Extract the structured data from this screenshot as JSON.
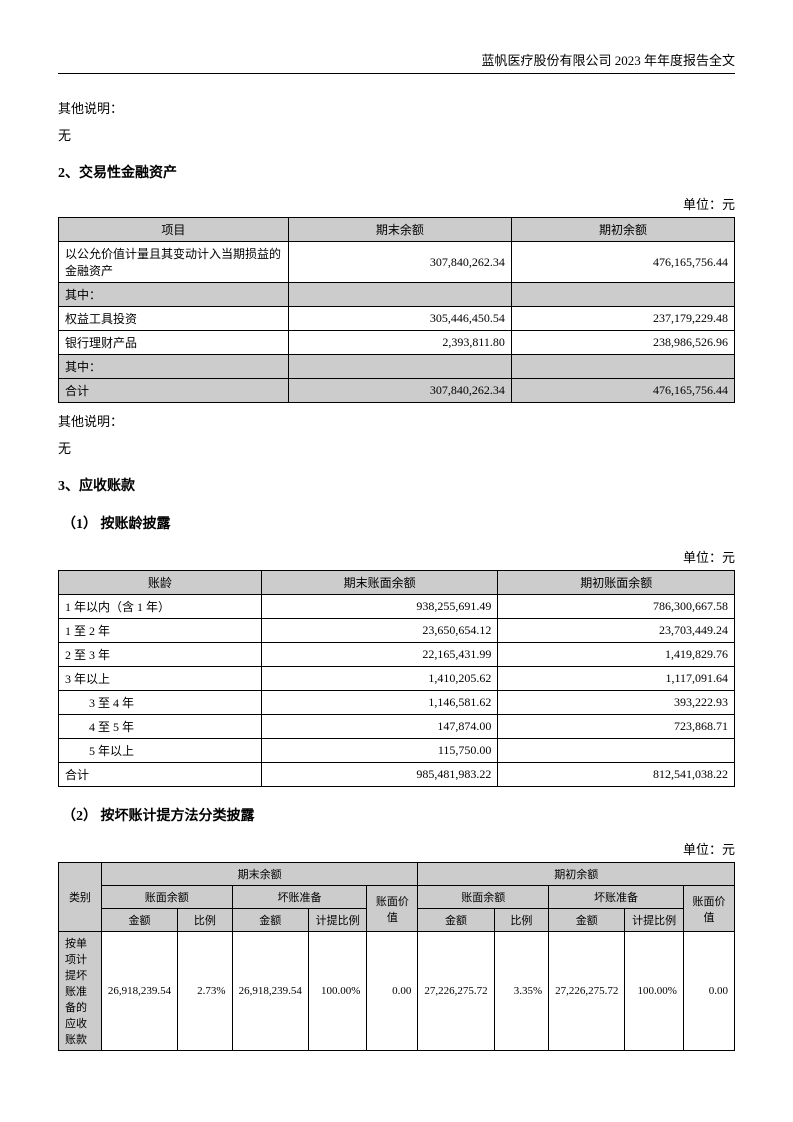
{
  "header": {
    "title": "蓝帆医疗股份有限公司 2023 年年度报告全文"
  },
  "texts": {
    "other_note_label": "其他说明：",
    "none": "无",
    "unit": "单位：元"
  },
  "section2": {
    "heading": "2、交易性金融资产",
    "columns": [
      "项目",
      "期末余额",
      "期初余额"
    ],
    "rows": [
      {
        "label": "以公允价值计量且其变动计入当期损益的金融资产",
        "end": "307,840,262.34",
        "begin": "476,165,756.44",
        "shaded": false
      },
      {
        "label": "其中：",
        "end": "",
        "begin": "",
        "shaded": true
      },
      {
        "label": "权益工具投资",
        "end": "305,446,450.54",
        "begin": "237,179,229.48",
        "shaded": false
      },
      {
        "label": "银行理财产品",
        "end": "2,393,811.80",
        "begin": "238,986,526.96",
        "shaded": false
      },
      {
        "label": "其中：",
        "end": "",
        "begin": "",
        "shaded": true
      },
      {
        "label": "合计",
        "end": "307,840,262.34",
        "begin": "476,165,756.44",
        "shaded": true
      }
    ]
  },
  "section3": {
    "heading": "3、应收账款",
    "sub1": "（1） 按账龄披露",
    "sub2": "（2） 按坏账计提方法分类披露",
    "table1": {
      "columns": [
        "账龄",
        "期末账面余额",
        "期初账面余额"
      ],
      "rows": [
        {
          "label": "1 年以内（含 1 年）",
          "end": "938,255,691.49",
          "begin": "786,300,667.58",
          "indent": 0
        },
        {
          "label": "1 至 2 年",
          "end": "23,650,654.12",
          "begin": "23,703,449.24",
          "indent": 0
        },
        {
          "label": "2 至 3 年",
          "end": "22,165,431.99",
          "begin": "1,419,829.76",
          "indent": 0
        },
        {
          "label": "3 年以上",
          "end": "1,410,205.62",
          "begin": "1,117,091.64",
          "indent": 0
        },
        {
          "label": "3 至 4 年",
          "end": "1,146,581.62",
          "begin": "393,222.93",
          "indent": 1
        },
        {
          "label": "4 至 5 年",
          "end": "147,874.00",
          "begin": "723,868.71",
          "indent": 1
        },
        {
          "label": "5 年以上",
          "end": "115,750.00",
          "begin": "",
          "indent": 1
        },
        {
          "label": "合计",
          "end": "985,481,983.22",
          "begin": "812,541,038.22",
          "indent": 0
        }
      ]
    },
    "table2": {
      "header1": {
        "c0": "类别",
        "c1": "期末余额",
        "c2": "期初余额"
      },
      "header2": {
        "c1": "账面余额",
        "c2": "坏账准备",
        "c3": "账面价值",
        "c4": "账面余额",
        "c5": "坏账准备",
        "c6": "账面价值"
      },
      "header3": {
        "a": "金额",
        "b": "比例",
        "c": "金额",
        "d": "计提比例",
        "e": "金额",
        "f": "比例",
        "g": "金额",
        "h": "计提比例"
      },
      "rows": [
        {
          "label": "按单项计提坏账准备的应收账款",
          "v": [
            "26,918,239.54",
            "2.73%",
            "26,918,239.54",
            "100.00%",
            "0.00",
            "27,226,275.72",
            "3.35%",
            "27,226,275.72",
            "100.00%",
            "0.00"
          ]
        }
      ]
    }
  }
}
